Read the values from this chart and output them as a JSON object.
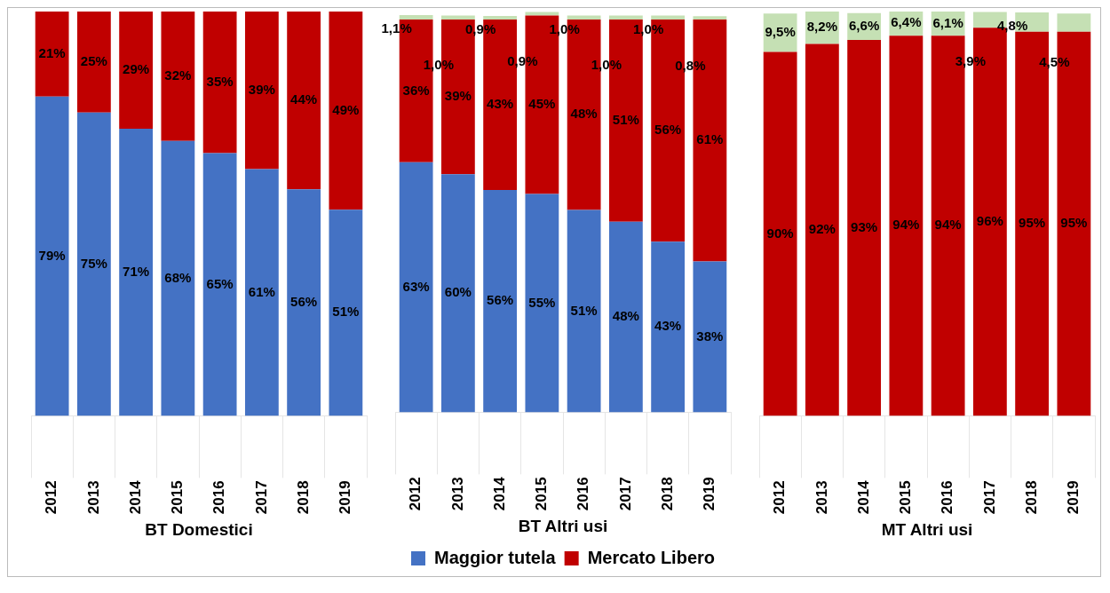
{
  "chart_data": [
    {
      "type": "bar",
      "stacked": true,
      "xlabel": "BT Domestici",
      "categories": [
        "2012",
        "2013",
        "2014",
        "2015",
        "2016",
        "2017",
        "2018",
        "2019"
      ],
      "ylim": [
        0,
        100
      ],
      "tick_labels": "x",
      "legend": false,
      "series": [
        {
          "color": "#4472c4",
          "values": [
            79,
            75,
            71,
            68,
            65,
            61,
            56,
            51
          ],
          "value_labels": [
            "79%",
            "75%",
            "71%",
            "68%",
            "65%",
            "61%",
            "56%",
            "51%"
          ]
        },
        {
          "color": "#c00000",
          "values": [
            21,
            25,
            29,
            32,
            35,
            39,
            44,
            49
          ],
          "value_labels": [
            "21%",
            "25%",
            "29%",
            "32%",
            "35%",
            "39%",
            "44%",
            "49%"
          ]
        }
      ]
    },
    {
      "type": "bar",
      "stacked": true,
      "xlabel": "BT Altri usi",
      "categories": [
        "2012",
        "2013",
        "2014",
        "2015",
        "2016",
        "2017",
        "2018",
        "2019"
      ],
      "ylim": [
        0,
        101
      ],
      "tick_labels": "x",
      "legend": "bottom",
      "series": [
        {
          "name": "Maggior tutela",
          "color": "#4472c4",
          "values": [
            63,
            60,
            56,
            55,
            51,
            48,
            43,
            38
          ],
          "value_labels": [
            "63%",
            "60%",
            "56%",
            "55%",
            "51%",
            "48%",
            "43%",
            "38%"
          ]
        },
        {
          "name": "Mercato Libero",
          "color": "#c00000",
          "values": [
            36,
            39,
            43,
            45,
            48,
            51,
            56,
            61
          ],
          "value_labels": [
            "36%",
            "39%",
            "43%",
            "45%",
            "48%",
            "51%",
            "56%",
            "61%"
          ]
        },
        {
          "color": "#c5e0b4",
          "values": [
            1.1,
            1.0,
            0.9,
            0.9,
            1.0,
            1.0,
            1.0,
            0.8
          ],
          "value_labels": [
            "1,1%",
            "1,0%",
            "0,9%",
            "0,9%",
            "1,0%",
            "1,0%",
            "1,0%",
            "0,8%"
          ]
        }
      ]
    },
    {
      "type": "bar",
      "stacked": true,
      "xlabel": "MT Altri usi",
      "categories": [
        "2012",
        "2013",
        "2014",
        "2015",
        "2016",
        "2017",
        "2018",
        "2019"
      ],
      "ylim": [
        0,
        100
      ],
      "tick_labels": "x",
      "legend": false,
      "series": [
        {
          "color": "#c00000",
          "values": [
            90,
            92,
            93,
            94,
            94,
            96,
            95,
            95
          ],
          "value_labels": [
            "90%",
            "92%",
            "93%",
            "94%",
            "94%",
            "96%",
            "95%",
            "95%"
          ]
        },
        {
          "color": "#c5e0b4",
          "values": [
            9.5,
            8.2,
            6.6,
            6.4,
            6.1,
            3.9,
            4.8,
            4.5
          ],
          "value_labels": [
            "9,5%",
            "8,2%",
            "6,6%",
            "6,4%",
            "6,1%",
            "3,9%",
            "4,8%",
            "4,5%"
          ]
        }
      ]
    }
  ]
}
